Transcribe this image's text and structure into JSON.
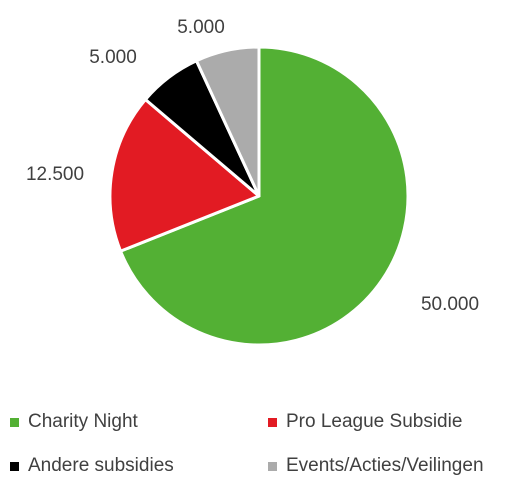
{
  "chart_data": {
    "type": "pie",
    "title": "",
    "start_angle_deg": 0,
    "direction": "clockwise",
    "slices": [
      {
        "name": "Charity Night",
        "value": 50000,
        "label": "50.000",
        "color": "#53b034"
      },
      {
        "name": "Pro League Subsidie",
        "value": 12500,
        "label": "12.500",
        "color": "#e21b23"
      },
      {
        "name": "Andere subsidies",
        "value": 5000,
        "label": "5.000",
        "color": "#000000"
      },
      {
        "name": "Events/Acties/Veilingen",
        "value": 5000,
        "label": "5.000",
        "color": "#ababab"
      }
    ],
    "slice_border_color": "#ffffff",
    "legend_position": "bottom"
  },
  "legend": {
    "items": [
      {
        "label": "Charity Night",
        "color": "#53b034"
      },
      {
        "label": "Pro League Subsidie",
        "color": "#e21b23"
      },
      {
        "label": "Andere subsidies",
        "color": "#000000"
      },
      {
        "label": "Events/Acties/Veilingen",
        "color": "#ababab"
      }
    ]
  }
}
